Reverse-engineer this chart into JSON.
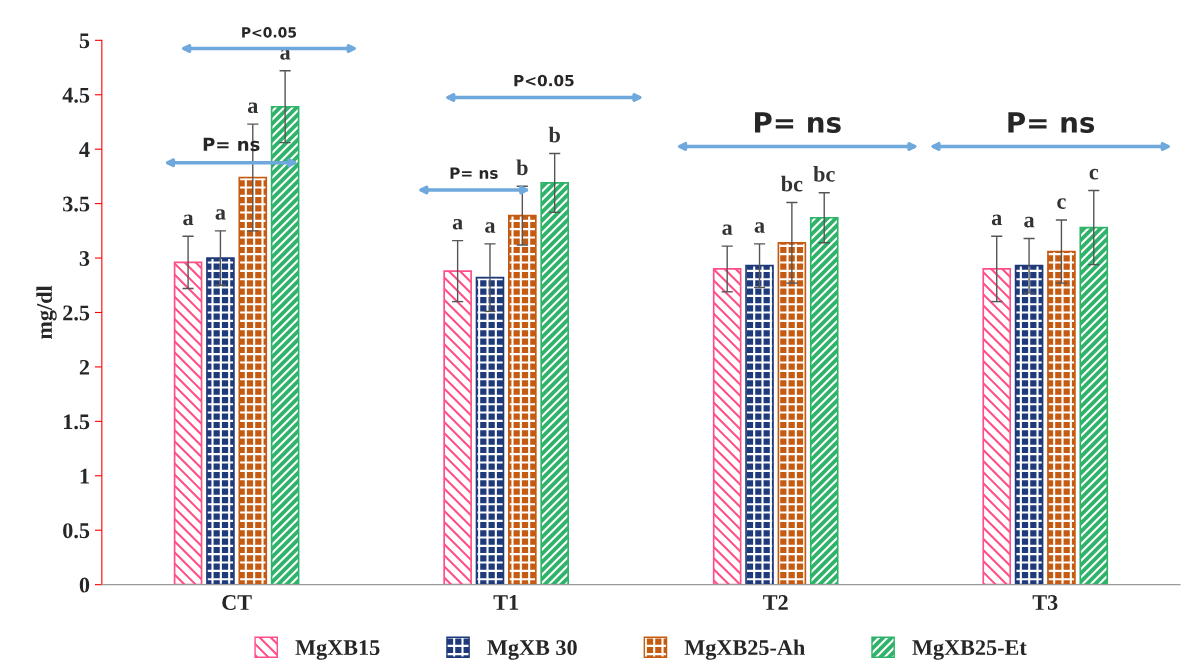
{
  "chart_data": {
    "type": "bar",
    "ylabel": "mg/dl",
    "categories": [
      "CT",
      "T1",
      "T2",
      "T3"
    ],
    "series": [
      {
        "name": "MgXB15",
        "color": "#ff4f86",
        "values": [
          2.96,
          2.88,
          2.9,
          2.9
        ],
        "errors": [
          0.24,
          0.28,
          0.21,
          0.3
        ],
        "value_labels": [
          "a",
          "a",
          "a",
          "a"
        ]
      },
      {
        "name": "MgXB 30",
        "color": "#1f3a7a",
        "values": [
          3.0,
          2.82,
          2.93,
          2.93
        ],
        "errors": [
          0.25,
          0.31,
          0.2,
          0.25
        ],
        "value_labels": [
          "a",
          "a",
          "a",
          "a"
        ]
      },
      {
        "name": "MgXB25-Ah",
        "color": "#c55a11",
        "values": [
          3.74,
          3.39,
          3.14,
          3.06
        ],
        "errors": [
          0.49,
          0.27,
          0.37,
          0.29
        ],
        "value_labels": [
          "a",
          "b",
          "bc",
          "c"
        ]
      },
      {
        "name": "MgXB25-Et",
        "color": "#2fb36a",
        "values": [
          4.39,
          3.69,
          3.37,
          3.28
        ],
        "errors": [
          0.33,
          0.27,
          0.23,
          0.34
        ],
        "value_labels": [
          "a",
          "b",
          "bc",
          "c"
        ]
      }
    ],
    "annotations": [
      "P= ns",
      "P<0.05",
      "P= ns",
      "P<0.05",
      "P= ns",
      "P= ns"
    ],
    "ylim": [
      0,
      5
    ],
    "yticks": [
      0,
      0.5,
      1,
      1.5,
      2,
      2.5,
      3,
      3.5,
      4,
      4.5,
      5
    ],
    "legend": "bottom",
    "grid": false
  }
}
